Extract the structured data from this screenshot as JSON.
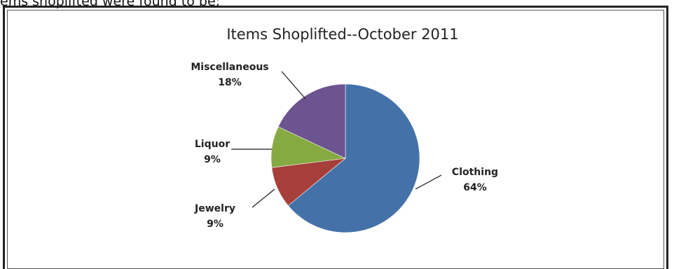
{
  "top_text": "ems shoplifted were found to be:",
  "chart_data": {
    "type": "pie",
    "title": "Items Shoplifted--October 2011",
    "slices": [
      {
        "label": "Clothing",
        "value": 64,
        "value_label": "64%",
        "color": "#4472a8"
      },
      {
        "label": "Jewelry",
        "value": 9,
        "value_label": "9%",
        "color": "#a63f3a"
      },
      {
        "label": "Liquor",
        "value": 9,
        "value_label": "9%",
        "color": "#86aa42"
      },
      {
        "label": "Miscellaneous",
        "value": 18,
        "value_label": "18%",
        "color": "#6c5490"
      }
    ],
    "start_angle_deg": 0,
    "direction": "clockwise",
    "data_labels": "category and percent with leader lines"
  }
}
